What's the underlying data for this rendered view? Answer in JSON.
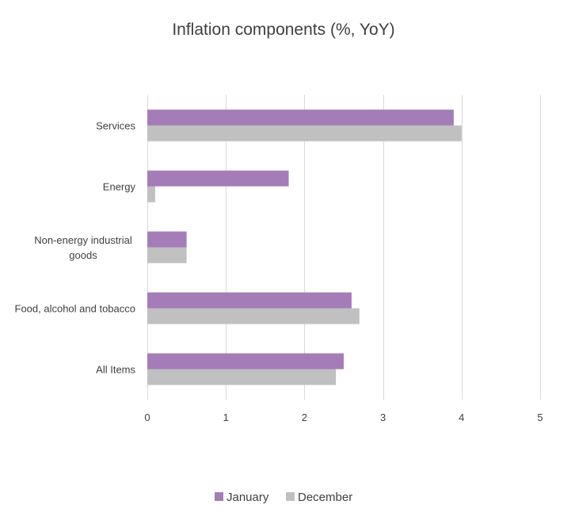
{
  "chart_data": {
    "type": "bar",
    "orientation": "horizontal",
    "title": "Inflation components (%, YoY)",
    "categories": [
      "Services",
      "Energy",
      "Non-energy industrial goods",
      "Food, alcohol and tobacco",
      "All Items"
    ],
    "category_lines": [
      [
        "Services"
      ],
      [
        "Energy"
      ],
      [
        "Non-energy industrial",
        "goods"
      ],
      [
        "Food, alcohol and tobacco"
      ],
      [
        "All Items"
      ]
    ],
    "series": [
      {
        "name": "January",
        "color": "#a47db8",
        "values": [
          3.9,
          1.8,
          0.5,
          2.6,
          2.5
        ]
      },
      {
        "name": "December",
        "color": "#c0c0c0",
        "values": [
          4.0,
          0.1,
          0.5,
          2.7,
          2.4
        ]
      }
    ],
    "xlim": [
      0,
      5
    ],
    "xticks": [
      0,
      1,
      2,
      3,
      4,
      5
    ],
    "grid": true,
    "legend_position": "bottom"
  }
}
